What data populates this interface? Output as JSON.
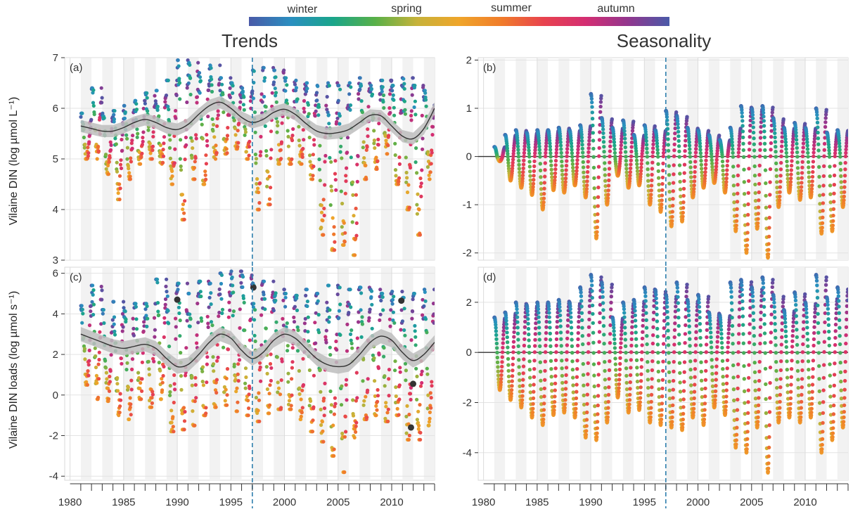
{
  "colorbar": {
    "labels": [
      "winter",
      "spring",
      "summer",
      "autumn"
    ],
    "colors": [
      "#4a5aa8",
      "#2a8fc0",
      "#1aa58a",
      "#58b048",
      "#c7b23a",
      "#efa52a",
      "#f07c2a",
      "#e8434e",
      "#d42e72",
      "#93368e",
      "#4a5aa8"
    ]
  },
  "titles": {
    "left": "Trends",
    "right": "Seasonality"
  },
  "accent": {
    "cutoff_line": "#2f7fae",
    "trend_line": "#333333",
    "trend_band": "#bdbdbd",
    "highlight_point": "#333333"
  },
  "chart_data": [
    {
      "panel": "(a)",
      "type": "scatter",
      "ylabel": "Vilaine DIN (log µmol L⁻¹)",
      "ylim": [
        3,
        7
      ],
      "yticks": [
        3,
        4,
        5,
        6,
        7
      ],
      "xlim": [
        1979.5,
        2014
      ],
      "xticks": [
        1980,
        1985,
        1990,
        1995,
        2000,
        2005,
        2010
      ],
      "vline": 1997,
      "trend": {
        "x": [
          1981,
          1982,
          1983,
          1984,
          1985,
          1986,
          1987,
          1988,
          1989,
          1990,
          1991,
          1992,
          1993,
          1994,
          1995,
          1996,
          1997,
          1998,
          1999,
          2000,
          2001,
          2002,
          2003,
          2004,
          2005,
          2006,
          2007,
          2008,
          2009,
          2010,
          2011,
          2012,
          2013,
          2014
        ],
        "y": [
          5.65,
          5.6,
          5.55,
          5.55,
          5.62,
          5.72,
          5.78,
          5.72,
          5.62,
          5.58,
          5.68,
          5.88,
          6.05,
          6.12,
          6.0,
          5.82,
          5.72,
          5.78,
          5.92,
          5.98,
          5.88,
          5.7,
          5.55,
          5.5,
          5.52,
          5.58,
          5.72,
          5.86,
          5.85,
          5.65,
          5.45,
          5.4,
          5.6,
          6.0
        ],
        "band": 0.12
      },
      "seasonal_min": [
        5.0,
        5.0,
        4.7,
        4.2,
        4.6,
        4.9,
        5.0,
        4.9,
        4.5,
        3.8,
        4.6,
        4.5,
        5.0,
        5.1,
        5.2,
        5.0,
        4.0,
        4.1,
        4.9,
        4.9,
        4.9,
        4.6,
        3.5,
        3.2,
        3.3,
        3.1,
        4.6,
        4.8,
        5.1,
        4.5,
        4.0,
        3.5,
        4.6,
        4.7
      ],
      "seasonal_max": [
        5.9,
        6.4,
        5.9,
        5.95,
        6.05,
        6.15,
        6.3,
        6.35,
        6.55,
        6.95,
        6.9,
        6.7,
        6.85,
        6.6,
        6.5,
        6.4,
        6.75,
        6.8,
        6.75,
        6.6,
        6.55,
        6.5,
        6.45,
        6.5,
        6.45,
        6.5,
        6.6,
        6.45,
        6.55,
        6.45,
        6.6,
        6.45,
        6.35,
        6.2
      ],
      "highlighted_points": []
    },
    {
      "panel": "(b)",
      "type": "scatter",
      "ylim": [
        -2.15,
        2.05
      ],
      "yticks": [
        -2,
        -1,
        0,
        1,
        2
      ],
      "xlim": [
        1979.5,
        2014
      ],
      "xticks": [
        1980,
        1985,
        1990,
        1995,
        2000,
        2005,
        2010
      ],
      "vline": 1997,
      "zero_line": true,
      "amp_max": [
        0.2,
        0.45,
        0.55,
        0.5,
        0.55,
        0.55,
        0.6,
        0.55,
        0.65,
        1.3,
        0.8,
        0.6,
        0.75,
        0.45,
        0.65,
        0.55,
        0.95,
        0.85,
        0.6,
        0.55,
        0.45,
        0.35,
        0.6,
        1.05,
        1.0,
        1.05,
        0.8,
        0.6,
        0.7,
        0.6,
        1.0,
        0.5,
        0.55,
        0.45
      ],
      "amp_min": [
        -0.1,
        -0.5,
        -0.65,
        -0.8,
        -1.1,
        -0.7,
        -0.75,
        -0.6,
        -0.85,
        -1.7,
        -1.0,
        -0.4,
        -0.65,
        -0.6,
        -1.0,
        -1.15,
        -1.45,
        -1.35,
        -0.85,
        -0.65,
        -0.55,
        -0.75,
        -1.55,
        -2.0,
        -1.5,
        -2.1,
        -1.05,
        -0.75,
        -0.9,
        -0.85,
        -1.6,
        -1.55,
        -1.05,
        -1.1
      ]
    },
    {
      "panel": "(c)",
      "type": "scatter",
      "ylabel": "Vilaine DIN loads (log µmol s⁻¹)",
      "ylim": [
        -4.2,
        6.3
      ],
      "yticks": [
        -4,
        -2,
        0,
        2,
        4,
        6
      ],
      "xlim": [
        1979.5,
        2014
      ],
      "xticks": [
        1980,
        1985,
        1990,
        1995,
        2000,
        2005,
        2010
      ],
      "vline": 1997,
      "trend": {
        "x": [
          1981,
          1982,
          1983,
          1984,
          1985,
          1986,
          1987,
          1988,
          1989,
          1990,
          1991,
          1992,
          1993,
          1994,
          1995,
          1996,
          1997,
          1998,
          1999,
          2000,
          2001,
          2002,
          2003,
          2004,
          2005,
          2006,
          2007,
          2008,
          2009,
          2010,
          2011,
          2012,
          2013,
          2014
        ],
        "y": [
          3.0,
          2.8,
          2.6,
          2.4,
          2.3,
          2.4,
          2.5,
          2.3,
          1.8,
          1.4,
          1.5,
          2.0,
          2.6,
          3.0,
          2.8,
          2.2,
          1.8,
          2.1,
          2.7,
          3.0,
          2.8,
          2.3,
          1.8,
          1.5,
          1.4,
          1.5,
          2.0,
          2.6,
          2.9,
          2.7,
          2.1,
          1.7,
          2.0,
          2.6
        ],
        "band": 0.35
      },
      "seasonal_min": [
        0.5,
        -0.2,
        -0.3,
        -1.0,
        -1.2,
        -0.2,
        -0.6,
        -0.2,
        -1.8,
        -1.7,
        -1.5,
        -1.0,
        -0.6,
        -0.5,
        -0.8,
        -1.0,
        -1.3,
        -0.9,
        -0.7,
        -0.7,
        -1.2,
        -1.8,
        -2.3,
        -3.0,
        -3.8,
        -2.1,
        -1.2,
        -1.0,
        -1.3,
        -1.0,
        -2.2,
        -2.2,
        -1.5,
        -1.3
      ],
      "seasonal_max": [
        4.4,
        5.4,
        4.2,
        4.6,
        4.3,
        4.5,
        4.5,
        5.7,
        5.1,
        5.5,
        5.0,
        5.6,
        5.5,
        6.0,
        6.1,
        5.9,
        5.5,
        5.6,
        5.2,
        5.0,
        4.9,
        5.2,
        5.0,
        5.4,
        5.3,
        5.2,
        5.3,
        5.2,
        5.0,
        5.1,
        4.8,
        5.0,
        5.2,
        4.8
      ],
      "highlighted_points": [
        [
          1990.0,
          4.7
        ],
        [
          1997.1,
          5.3
        ],
        [
          2010.9,
          4.65
        ],
        [
          2012.0,
          0.55
        ],
        [
          2011.8,
          -1.6
        ]
      ]
    },
    {
      "panel": "(d)",
      "type": "scatter",
      "ylim": [
        -5.1,
        3.4
      ],
      "yticks": [
        -4,
        -2,
        0,
        2
      ],
      "xlim": [
        1979.5,
        2014
      ],
      "xticks": [
        1980,
        1985,
        1990,
        1995,
        2000,
        2005,
        2010
      ],
      "vline": 1997,
      "zero_line": true,
      "amp_max": [
        1.4,
        1.6,
        2.0,
        1.9,
        2.0,
        2.0,
        2.1,
        2.0,
        2.6,
        3.1,
        2.8,
        1.4,
        2.0,
        2.1,
        2.6,
        2.5,
        2.3,
        2.8,
        2.1,
        2.3,
        1.6,
        1.5,
        2.8,
        2.9,
        2.6,
        3.0,
        2.3,
        1.7,
        2.4,
        2.0,
        3.1,
        2.2,
        2.6,
        2.1
      ],
      "amp_min": [
        -1.5,
        -1.9,
        -2.2,
        -2.6,
        -2.9,
        -2.5,
        -2.4,
        -2.6,
        -3.4,
        -3.5,
        -2.8,
        -1.8,
        -2.4,
        -2.3,
        -2.8,
        -2.9,
        -3.0,
        -3.1,
        -2.6,
        -2.9,
        -2.2,
        -2.5,
        -3.8,
        -4.0,
        -3.0,
        -4.8,
        -2.8,
        -2.6,
        -2.8,
        -2.6,
        -4.0,
        -3.5,
        -3.0,
        -3.4
      ]
    }
  ]
}
